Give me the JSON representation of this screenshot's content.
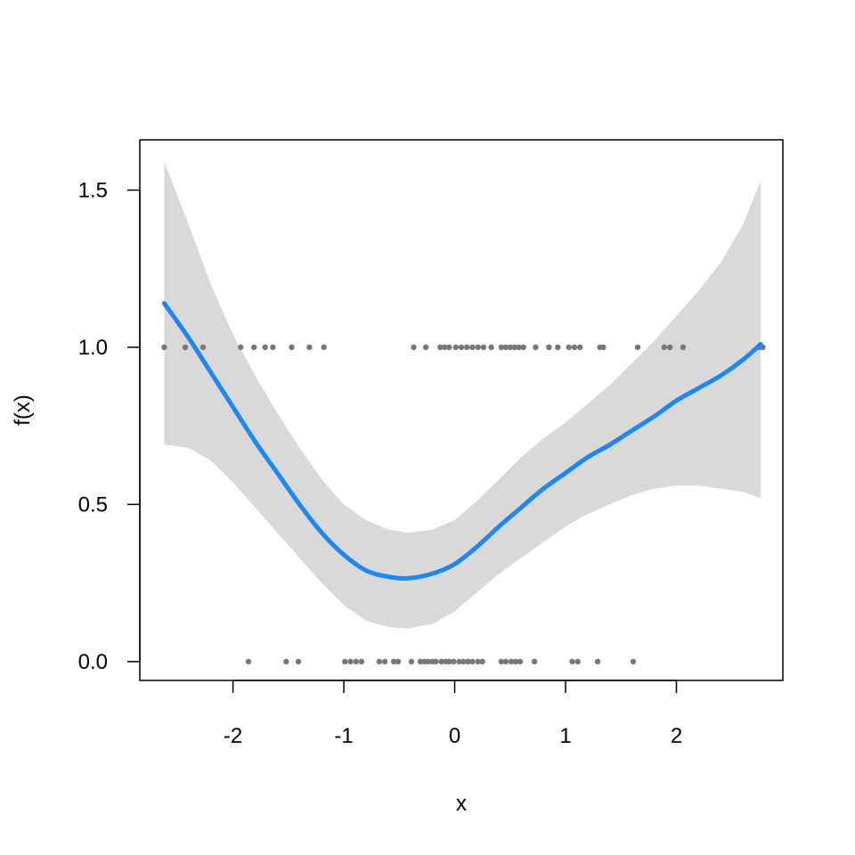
{
  "chart_data": {
    "type": "line",
    "title": "",
    "xlabel": "x",
    "ylabel": "f(x)",
    "xlim": [
      -2.84,
      2.96
    ],
    "ylim": [
      -0.06,
      1.66
    ],
    "x_ticks": [
      -2,
      -1,
      0,
      1,
      2
    ],
    "x_tick_labels": [
      "-2",
      "-1",
      "0",
      "1",
      "2"
    ],
    "y_ticks": [
      0.0,
      0.5,
      1.0,
      1.5
    ],
    "y_tick_labels": [
      "0.0",
      "0.5",
      "1.0",
      "1.5"
    ],
    "grid": false,
    "legend": "none",
    "colors": {
      "curve": "#1e88f0",
      "band": "#d9d9d9",
      "points": "#777777",
      "frame": "#000000"
    },
    "fit": {
      "x": [
        -2.62,
        -2.4,
        -2.2,
        -2.0,
        -1.8,
        -1.6,
        -1.4,
        -1.2,
        -1.0,
        -0.8,
        -0.6,
        -0.42,
        -0.2,
        0.0,
        0.2,
        0.4,
        0.6,
        0.8,
        1.0,
        1.2,
        1.4,
        1.6,
        1.8,
        2.0,
        2.2,
        2.4,
        2.6,
        2.76
      ],
      "y": [
        1.14,
        1.03,
        0.92,
        0.81,
        0.7,
        0.6,
        0.5,
        0.41,
        0.34,
        0.29,
        0.27,
        0.265,
        0.28,
        0.31,
        0.365,
        0.43,
        0.49,
        0.55,
        0.6,
        0.65,
        0.69,
        0.735,
        0.78,
        0.83,
        0.87,
        0.91,
        0.96,
        1.01
      ],
      "lower": [
        0.69,
        0.68,
        0.64,
        0.57,
        0.49,
        0.41,
        0.33,
        0.25,
        0.18,
        0.13,
        0.11,
        0.105,
        0.12,
        0.16,
        0.22,
        0.28,
        0.33,
        0.38,
        0.43,
        0.47,
        0.5,
        0.53,
        0.55,
        0.56,
        0.56,
        0.55,
        0.54,
        0.52
      ],
      "upper": [
        1.59,
        1.39,
        1.2,
        1.04,
        0.91,
        0.79,
        0.68,
        0.58,
        0.5,
        0.45,
        0.42,
        0.41,
        0.42,
        0.45,
        0.51,
        0.58,
        0.65,
        0.71,
        0.76,
        0.82,
        0.88,
        0.95,
        1.02,
        1.1,
        1.18,
        1.27,
        1.39,
        1.53
      ]
    },
    "points_y1": [
      -2.62,
      -2.43,
      -2.27,
      -1.93,
      -1.81,
      -1.71,
      -1.64,
      -1.47,
      -1.31,
      -1.18,
      -0.37,
      -0.26,
      -0.13,
      -0.09,
      -0.05,
      0.01,
      0.06,
      0.11,
      0.16,
      0.21,
      0.26,
      0.33,
      0.42,
      0.46,
      0.5,
      0.54,
      0.58,
      0.62,
      0.73,
      0.85,
      0.93,
      1.03,
      1.08,
      1.13,
      1.31,
      1.34,
      1.65,
      1.89,
      1.94,
      2.06,
      2.75,
      2.78
    ],
    "points_y0": [
      -1.86,
      -1.52,
      -1.41,
      -0.99,
      -0.94,
      -0.89,
      -0.84,
      -0.68,
      -0.63,
      -0.55,
      -0.51,
      -0.39,
      -0.31,
      -0.27,
      -0.24,
      -0.2,
      -0.17,
      -0.12,
      -0.08,
      -0.05,
      -0.01,
      0.04,
      0.08,
      0.12,
      0.16,
      0.21,
      0.25,
      0.42,
      0.46,
      0.51,
      0.55,
      0.59,
      0.72,
      1.06,
      1.11,
      1.29,
      1.61
    ]
  }
}
